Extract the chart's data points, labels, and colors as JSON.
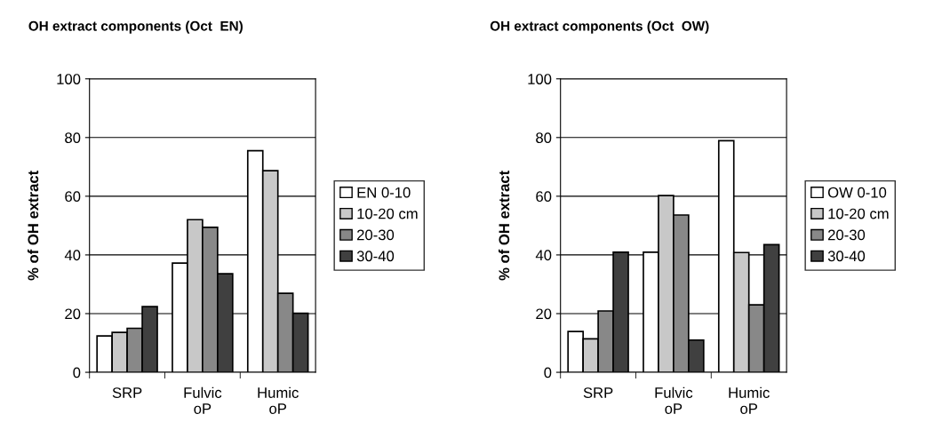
{
  "chart_data": [
    {
      "type": "bar",
      "title": "OH extract components (Oct  EN)",
      "ylabel": "% of OH extract",
      "categories": [
        "SRP",
        "Fulvic\noP",
        "Humic\noP"
      ],
      "ylim": [
        0,
        100
      ],
      "yticks": [
        0,
        20,
        40,
        60,
        80,
        100
      ],
      "grid": "y",
      "legend": "right",
      "series": [
        {
          "name": "EN 0-10",
          "color": "#ffffff",
          "values": [
            12.4,
            37.2,
            75.5
          ]
        },
        {
          "name": "10-20 cm",
          "color": "#c8c8c8",
          "values": [
            13.6,
            52,
            68.7
          ]
        },
        {
          "name": "20-30",
          "color": "#888888",
          "values": [
            15,
            49.4,
            26.9
          ]
        },
        {
          "name": "30-40",
          "color": "#404040",
          "values": [
            22.4,
            33.6,
            20.1
          ]
        }
      ]
    },
    {
      "type": "bar",
      "title": "OH extract components (Oct  OW)",
      "ylabel": "% of OH extract",
      "categories": [
        "SRP",
        "Fulvic\noP",
        "Humic\noP"
      ],
      "ylim": [
        0,
        100
      ],
      "yticks": [
        0,
        20,
        40,
        60,
        80,
        100
      ],
      "grid": "y",
      "legend": "right",
      "series": [
        {
          "name": "OW 0-10",
          "color": "#ffffff",
          "values": [
            13.9,
            40.9,
            78.9
          ]
        },
        {
          "name": "10-20 cm",
          "color": "#c8c8c8",
          "values": [
            11.4,
            60.2,
            40.8
          ]
        },
        {
          "name": "20-30",
          "color": "#888888",
          "values": [
            20.9,
            53.6,
            23
          ]
        },
        {
          "name": "30-40",
          "color": "#404040",
          "values": [
            40.9,
            11,
            43.5
          ]
        }
      ]
    }
  ]
}
